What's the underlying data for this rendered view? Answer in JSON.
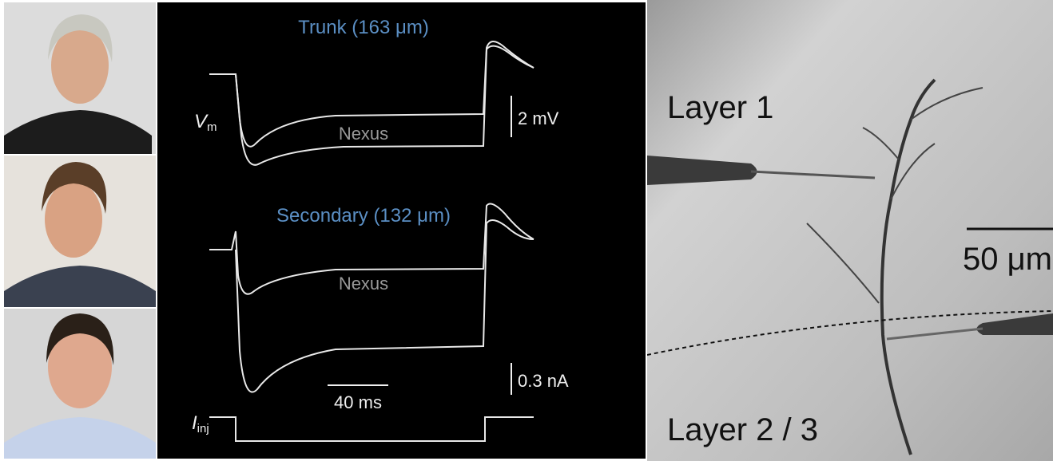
{
  "traces": {
    "top_title": "Trunk (163 μm)",
    "vm_label": {
      "symbol": "V",
      "subscript": "m"
    },
    "top_nexus": "Nexus",
    "voltage_scale": "2 mV",
    "bottom_title": "Secondary (132 μm)",
    "bottom_nexus": "Nexus",
    "current_scale": "0.3 nA",
    "time_scale": "40 ms",
    "iinj_label": {
      "symbol": "I",
      "subscript": "inj"
    }
  },
  "micrograph": {
    "layer_top": "Layer 1",
    "scale_bar": "50 μm",
    "layer_bottom": "Layer 2 / 3"
  }
}
